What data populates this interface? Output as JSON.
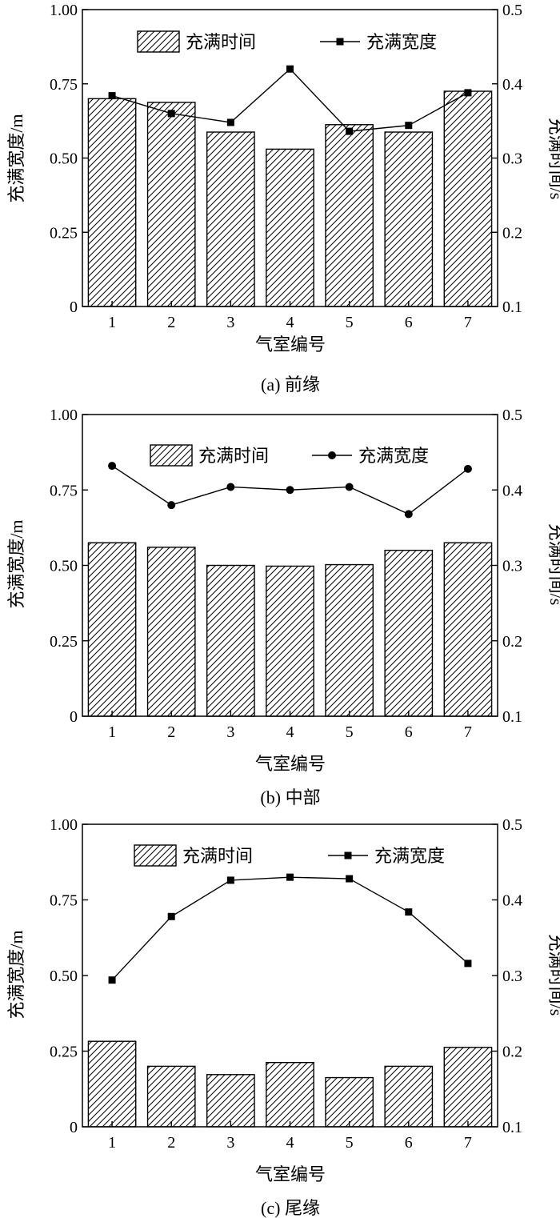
{
  "chart_data": [
    {
      "type": "bar",
      "caption": "(a) 前缘",
      "categories": [
        "1",
        "2",
        "3",
        "4",
        "5",
        "6",
        "7"
      ],
      "xlabel": "气室编号",
      "ylabel_left": "充满宽度/m",
      "ylabel_right": "充满时间/s",
      "ylim_left": [
        0,
        1.0
      ],
      "ylim_right": [
        0.1,
        0.5
      ],
      "yticks_left": [
        "0",
        "0.25",
        "0.50",
        "0.75",
        "1.00"
      ],
      "yticks_right": [
        "0.1",
        "0.2",
        "0.3",
        "0.4",
        "0.5"
      ],
      "legend_position": "top",
      "series": [
        {
          "name": "充满时间",
          "type": "bar",
          "axis": "right",
          "fill": "hatched",
          "values": [
            0.38,
            0.375,
            0.335,
            0.312,
            0.345,
            0.335,
            0.39
          ]
        },
        {
          "name": "充满宽度",
          "type": "line",
          "axis": "left",
          "marker": "square",
          "values": [
            0.71,
            0.65,
            0.62,
            0.8,
            0.59,
            0.61,
            0.72
          ]
        }
      ]
    },
    {
      "type": "bar",
      "caption": "(b) 中部",
      "categories": [
        "1",
        "2",
        "3",
        "4",
        "5",
        "6",
        "7"
      ],
      "xlabel": "气室编号",
      "ylabel_left": "充满宽度/m",
      "ylabel_right": "充满时间/s",
      "ylim_left": [
        0,
        1.0
      ],
      "ylim_right": [
        0.1,
        0.5
      ],
      "yticks_left": [
        "0",
        "0.25",
        "0.50",
        "0.75",
        "1.00"
      ],
      "yticks_right": [
        "0.1",
        "0.2",
        "0.3",
        "0.4",
        "0.5"
      ],
      "legend_position": "top",
      "series": [
        {
          "name": "充满时间",
          "type": "bar",
          "axis": "right",
          "fill": "hatched",
          "values": [
            0.33,
            0.324,
            0.3,
            0.299,
            0.301,
            0.32,
            0.33
          ]
        },
        {
          "name": "充满宽度",
          "type": "line",
          "axis": "left",
          "marker": "circle",
          "values": [
            0.83,
            0.7,
            0.76,
            0.75,
            0.76,
            0.67,
            0.82
          ]
        }
      ]
    },
    {
      "type": "bar",
      "caption": "(c) 尾缘",
      "categories": [
        "1",
        "2",
        "3",
        "4",
        "5",
        "6",
        "7"
      ],
      "xlabel": "气室编号",
      "ylabel_left": "充满宽度/m",
      "ylabel_right": "充满时间/s",
      "ylim_left": [
        0,
        1.0
      ],
      "ylim_right": [
        0.1,
        0.5
      ],
      "yticks_left": [
        "0",
        "0.25",
        "0.50",
        "0.75",
        "1.00"
      ],
      "yticks_right": [
        "0.1",
        "0.2",
        "0.3",
        "0.4",
        "0.5"
      ],
      "legend_position": "top",
      "series": [
        {
          "name": "充满时间",
          "type": "bar",
          "axis": "right",
          "fill": "hatched",
          "values": [
            0.213,
            0.18,
            0.169,
            0.185,
            0.165,
            0.18,
            0.205
          ]
        },
        {
          "name": "充满宽度",
          "type": "line",
          "axis": "left",
          "marker": "square",
          "values": [
            0.485,
            0.695,
            0.815,
            0.825,
            0.82,
            0.71,
            0.54
          ]
        }
      ]
    }
  ]
}
